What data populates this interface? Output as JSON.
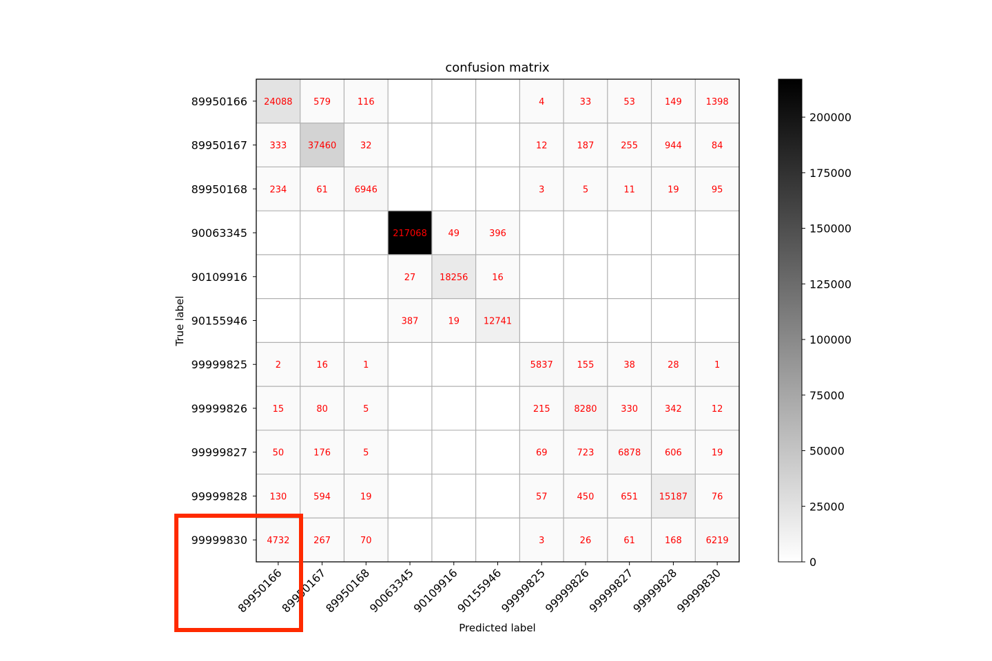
{
  "chart_data": {
    "type": "heatmap",
    "title": "confusion matrix",
    "xlabel": "Predicted label",
    "ylabel": "True label",
    "labels": [
      "89950166",
      "89950167",
      "89950168",
      "90063345",
      "90109916",
      "90155946",
      "99999825",
      "99999826",
      "99999827",
      "99999828",
      "99999830"
    ],
    "matrix": [
      [
        24088,
        579,
        116,
        0,
        0,
        0,
        4,
        33,
        53,
        149,
        1398
      ],
      [
        333,
        37460,
        32,
        0,
        0,
        0,
        12,
        187,
        255,
        944,
        84
      ],
      [
        234,
        61,
        6946,
        0,
        0,
        0,
        3,
        5,
        11,
        19,
        95
      ],
      [
        0,
        0,
        0,
        217068,
        49,
        396,
        0,
        0,
        0,
        0,
        0
      ],
      [
        0,
        0,
        0,
        27,
        18256,
        16,
        0,
        0,
        0,
        0,
        0
      ],
      [
        0,
        0,
        0,
        387,
        19,
        12741,
        0,
        0,
        0,
        0,
        0
      ],
      [
        2,
        16,
        1,
        0,
        0,
        0,
        5837,
        155,
        38,
        28,
        1
      ],
      [
        15,
        80,
        5,
        0,
        0,
        0,
        215,
        8280,
        330,
        342,
        12
      ],
      [
        50,
        176,
        5,
        0,
        0,
        0,
        69,
        723,
        6878,
        606,
        19
      ],
      [
        130,
        594,
        19,
        0,
        0,
        0,
        57,
        450,
        651,
        15187,
        76
      ],
      [
        4732,
        267,
        70,
        0,
        0,
        0,
        3,
        26,
        61,
        168,
        6219
      ]
    ],
    "colorbar": {
      "range": [
        0,
        217068
      ],
      "ticks": [
        0,
        25000,
        50000,
        75000,
        100000,
        125000,
        150000,
        175000,
        200000
      ],
      "colormap": "white-to-black"
    },
    "grid": true,
    "zero_cells_hidden": true,
    "cell_text_color": "#ff0000",
    "highlight_box": {
      "color": "#ff2a00",
      "encloses": [
        "row 99999830 label",
        "column 89950166 tick label"
      ]
    }
  }
}
